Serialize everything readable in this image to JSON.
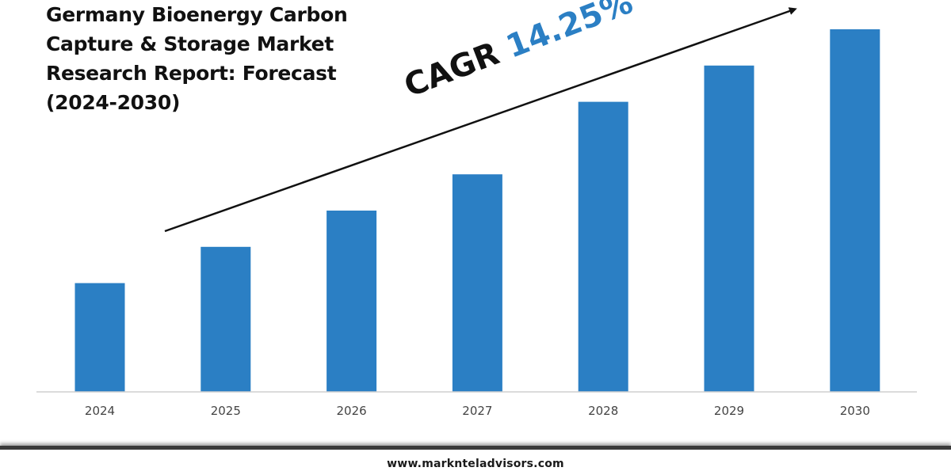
{
  "title_lines": [
    "Germany Bioenergy Carbon",
    "Capture & Storage Market",
    "Research Report: Forecast",
    "(2024-2030)"
  ],
  "cagr": {
    "label": "CAGR",
    "value": "14.25%"
  },
  "footer": {
    "website": "www.marknteladvisors.com"
  },
  "colors": {
    "bar": "#2b7fc4",
    "cagr_value": "#2b7fc4",
    "text": "#111111"
  },
  "chart_data": {
    "type": "bar",
    "title": "Germany Bioenergy Carbon Capture & Storage Market Research Report: Forecast (2024-2030)",
    "categories": [
      "2024",
      "2025",
      "2026",
      "2027",
      "2028",
      "2029",
      "2030"
    ],
    "values": [
      30,
      40,
      50,
      60,
      80,
      90,
      100
    ],
    "ylim": [
      0,
      100
    ],
    "xlabel": "",
    "ylabel": "",
    "grid": false,
    "annotations": [
      "CAGR 14.25%"
    ]
  }
}
